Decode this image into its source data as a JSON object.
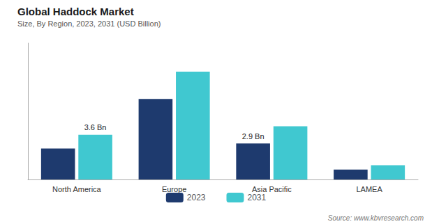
{
  "chart_data": {
    "type": "bar",
    "title": "Global Haddock Market",
    "subtitle": "Size, By Region, 2023, 2031 (USD Billion)",
    "categories": [
      "North America",
      "Europe",
      "Asia Pacific",
      "LAMEA"
    ],
    "series": [
      {
        "name": "2023",
        "color": "#1e3a6e",
        "values": [
          2.5,
          6.5,
          2.9,
          0.8
        ]
      },
      {
        "name": "2031",
        "color": "#40c8d0",
        "values": [
          3.6,
          8.7,
          4.3,
          1.15
        ]
      }
    ],
    "ylim": [
      0,
      11.0
    ],
    "grid": false,
    "legend": "bottom",
    "tick_labels": "x",
    "annotations": [
      {
        "text": "3.6 Bn",
        "category": "North America",
        "series": "2031"
      },
      {
        "text": "2.9 Bn",
        "category": "Asia Pacific",
        "series": "2023"
      }
    ],
    "source": "Source: www.kbvresearch.com"
  }
}
